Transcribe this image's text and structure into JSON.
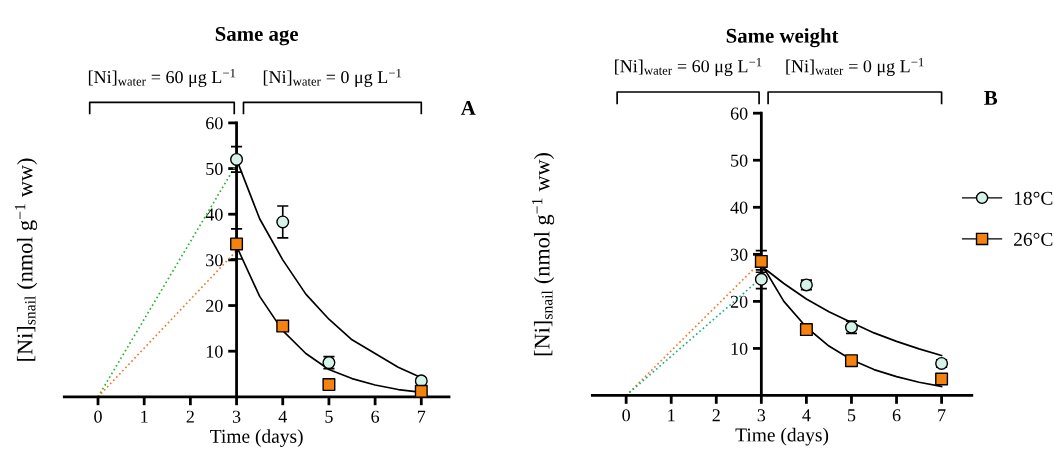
{
  "chart_data": [
    {
      "type": "scatter",
      "title": "Same age",
      "xlabel": "Time (days)",
      "ylabel": "[Ni]$_{snail}$ (nmol g$^{−1}$ ww)",
      "annotations": [
        "[Ni]$_{water}$ = 60 μg L$^{−1}$",
        "[Ni]$_{water}$ = 0 μg L$^{−1}$",
        "A"
      ],
      "xlim": [
        -0.73,
        7.6
      ],
      "xticks": [
        0,
        1,
        2,
        3,
        4,
        5,
        6,
        7
      ],
      "ylim": [
        0,
        60
      ],
      "yticks": [
        10,
        20,
        30,
        40,
        50,
        60
      ],
      "grid": false,
      "legend": false,
      "series": [
        {
          "type": "line",
          "color": "#2ab52a",
          "line_style": "dotted",
          "marker": "none",
          "x": [
            0,
            3
          ],
          "values": [
            0,
            51
          ]
        },
        {
          "type": "line",
          "color": "#f07a2a",
          "line_style": "dotted",
          "marker": "none",
          "x": [
            0,
            3
          ],
          "values": [
            0,
            32
          ]
        },
        {
          "type": "line",
          "color": "#000000",
          "line_style": "solid",
          "marker": "none",
          "x": [
            3,
            3.5,
            4,
            4.5,
            5,
            5.5,
            6,
            6.5,
            7
          ],
          "values": [
            52,
            39,
            30,
            22.5,
            17,
            12.5,
            9.5,
            6.5,
            4.2
          ]
        },
        {
          "type": "line",
          "color": "#000000",
          "line_style": "solid",
          "marker": "none",
          "x": [
            3,
            3.5,
            4,
            4.5,
            5,
            5.5,
            6,
            6.5,
            7
          ],
          "values": [
            33,
            22,
            14.5,
            9.5,
            6,
            4,
            2.6,
            1.6,
            1
          ]
        },
        {
          "color": "#d6f3ea",
          "marker": "circle",
          "x": [
            3,
            4,
            5,
            7
          ],
          "values": [
            52,
            38.3,
            7.5,
            3.5
          ],
          "errors": [
            2.8,
            3.5,
            1.3,
            0.5
          ]
        },
        {
          "color": "#f5820f",
          "marker": "square",
          "x": [
            3,
            4,
            5,
            7
          ],
          "values": [
            33.5,
            15.5,
            2.7,
            1.2
          ],
          "errors": [
            3.3,
            1,
            null,
            null
          ]
        }
      ]
    },
    {
      "type": "scatter",
      "title": "Same weight",
      "xlabel": "Time (days)",
      "ylabel": "[Ni]$_{snail}$ (nmol g$^{−1}$ ww)",
      "annotations": [
        "[Ni]$_{water}$ = 60 μg L$^{−1}$",
        "[Ni]$_{water}$ = 0 μg L$^{−1}$",
        "B"
      ],
      "xlim": [
        -0.75,
        7.67
      ],
      "xticks": [
        0,
        1,
        2,
        3,
        4,
        5,
        6,
        7
      ],
      "ylim": [
        0,
        60
      ],
      "yticks": [
        10,
        20,
        30,
        40,
        50,
        60
      ],
      "grid": false,
      "legend": "right",
      "series": [
        {
          "type": "line",
          "color": "#f07a2a",
          "line_style": "dotted",
          "marker": "none",
          "x": [
            0,
            3
          ],
          "values": [
            0,
            28.5
          ]
        },
        {
          "type": "line",
          "color": "#1fae8a",
          "line_style": "dotted",
          "marker": "none",
          "x": [
            0,
            3
          ],
          "values": [
            0,
            25
          ]
        },
        {
          "type": "line",
          "color": "#000000",
          "line_style": "solid",
          "marker": "none",
          "x": [
            3,
            3.5,
            4,
            4.5,
            5,
            5.5,
            6,
            6.5,
            7
          ],
          "values": [
            27.5,
            23.8,
            20.5,
            17.8,
            15.5,
            13.3,
            11.5,
            9.9,
            8.5
          ]
        },
        {
          "type": "line",
          "color": "#000000",
          "line_style": "solid",
          "marker": "none",
          "x": [
            3,
            3.5,
            4,
            4.5,
            5,
            5.5,
            6,
            6.5,
            7
          ],
          "values": [
            28,
            20,
            14.5,
            10.5,
            7.6,
            5.5,
            4,
            2.8,
            1.9
          ]
        },
        {
          "name": "18°C",
          "color": "#d6f3ea",
          "marker": "circle",
          "x": [
            3,
            4,
            5,
            7
          ],
          "values": [
            24.7,
            23.5,
            14.5,
            6.8
          ],
          "errors": [
            2,
            1,
            1.3,
            0.8
          ]
        },
        {
          "name": "26°C",
          "color": "#f5820f",
          "marker": "square",
          "x": [
            3,
            4,
            5,
            7
          ],
          "values": [
            28.5,
            14,
            7.4,
            3.5
          ],
          "errors": [
            2.3,
            null,
            null,
            null
          ]
        }
      ]
    }
  ]
}
